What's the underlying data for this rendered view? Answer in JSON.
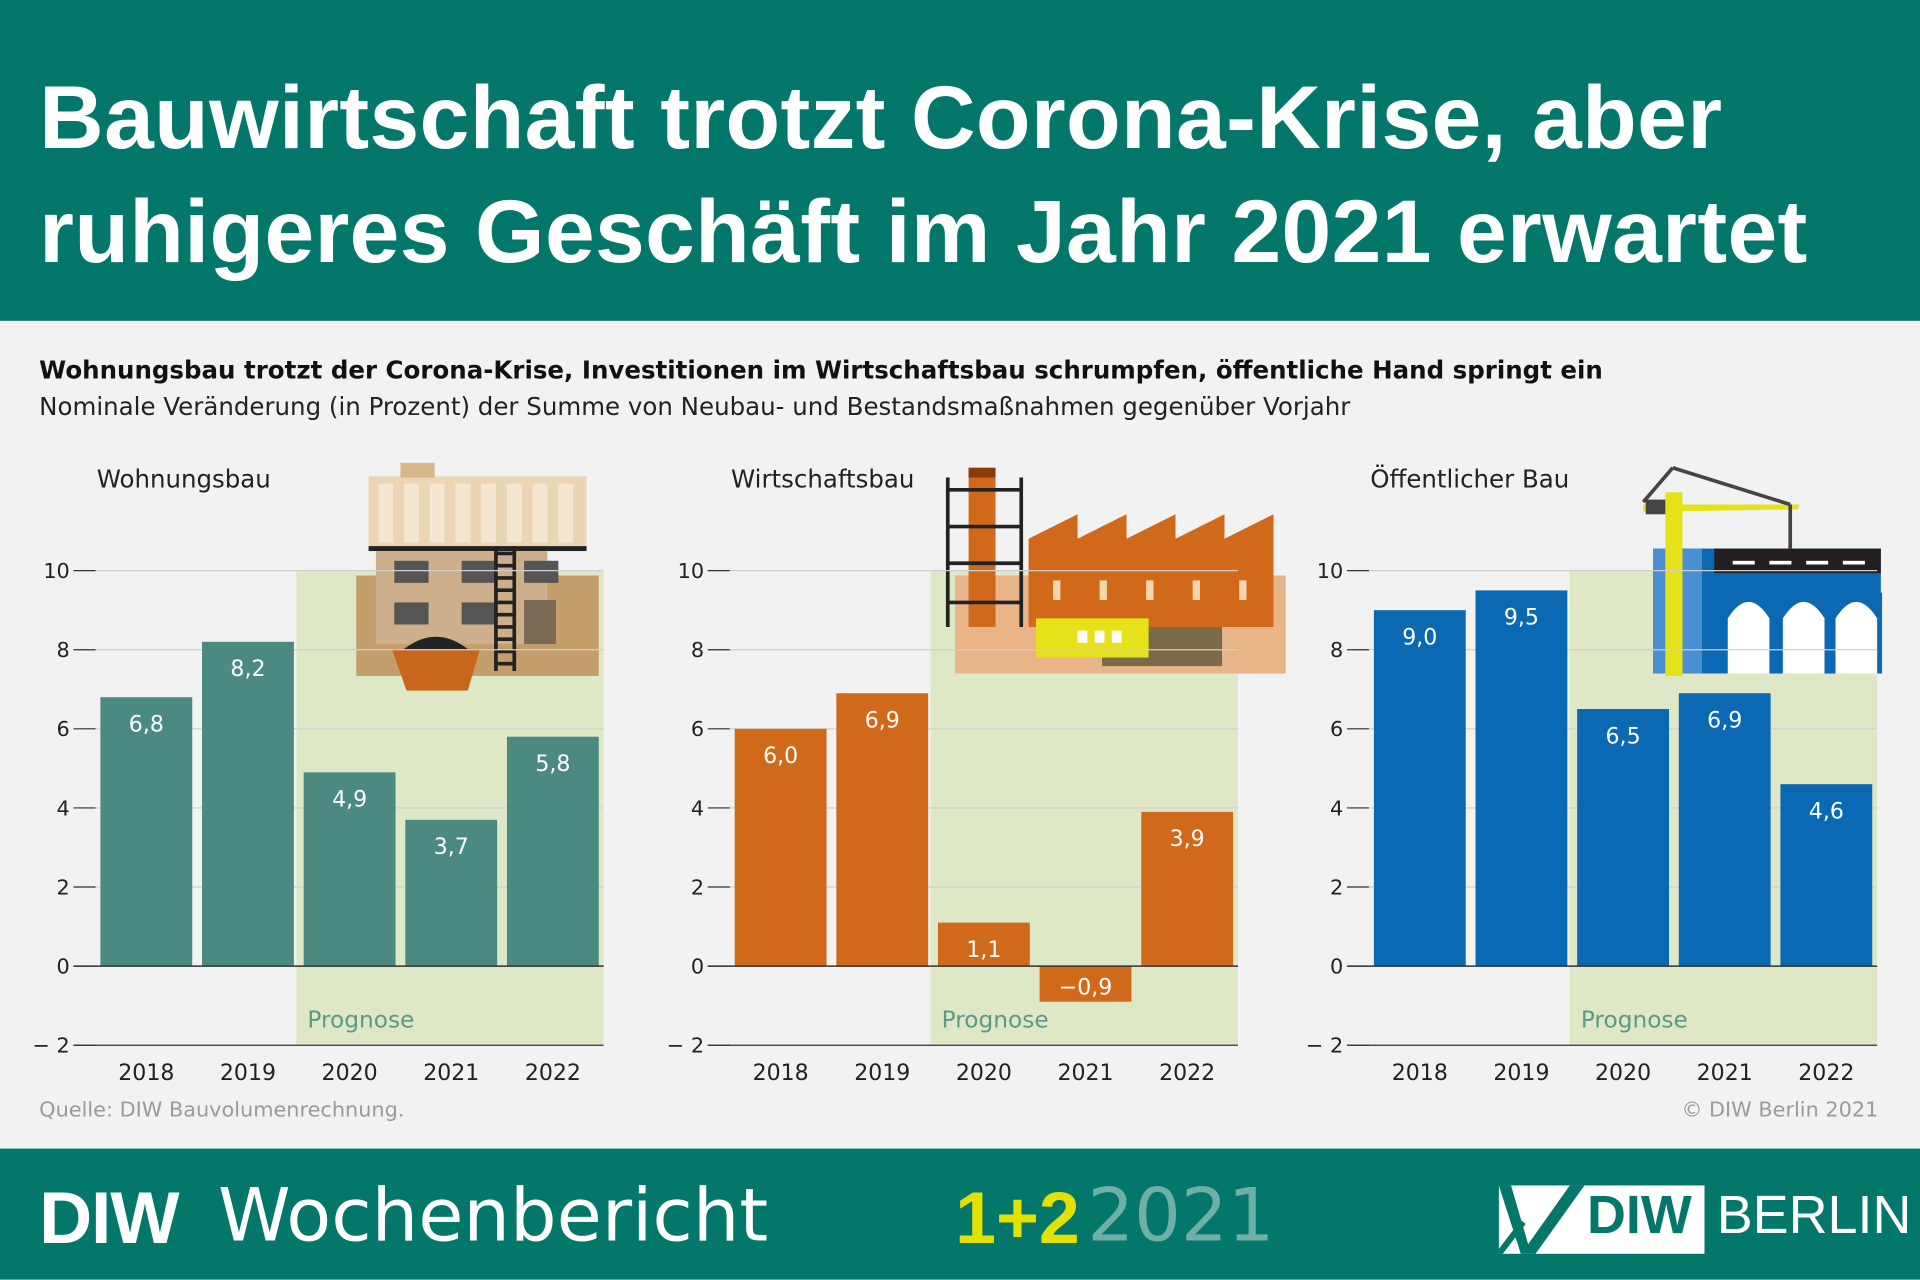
{
  "header": {
    "title_line1": "Bauwirtschaft trotzt Corona-Krise, aber",
    "title_line2": "ruhigeres Geschäft im Jahr 2021 erwartet"
  },
  "subtitle": "Wohnungsbau trotzt der Corona-Krise, Investitionen im Wirtschaftsbau schrumpfen, öffentliche Hand springt ein",
  "description": "Nominale Veränderung (in Prozent) der Summe von Neubau- und Bestandsmaßnahmen gegenüber Vorjahr",
  "source": "Quelle: DIW Bauvolumenrechnung.",
  "copyright": "© DIW Berlin 2021",
  "footer": {
    "publication_bold": "DIW",
    "publication": "Wochenbericht",
    "issue": "1+2",
    "year": "2021",
    "logo_diw": "DIW",
    "logo_berlin": "BERLIN"
  },
  "colors": {
    "header": "#03786a",
    "wohnungsbau": "#4a8a80",
    "wirtschaftsbau": "#d0691a",
    "oeffentlich": "#0a69b2",
    "prognose": "#dfe8c6"
  },
  "chart_data": [
    {
      "type": "bar",
      "title": "Wohnungsbau",
      "categories": [
        "2018",
        "2019",
        "2020",
        "2021",
        "2022"
      ],
      "values": [
        6.8,
        8.2,
        4.9,
        3.7,
        5.8
      ],
      "value_labels": [
        "6,8",
        "8,2",
        "4,9",
        "3,7",
        "5,8"
      ],
      "ylim": [
        -2,
        10
      ],
      "yticks": [
        10,
        8,
        6,
        4,
        2,
        0,
        -2
      ],
      "ytick_labels": [
        "10",
        "8",
        "6",
        "4",
        "2",
        "0",
        "− 2"
      ],
      "annotation": "Prognose",
      "prognose_from": "2020",
      "color": "#4a8a80",
      "grid": true,
      "illustration": "residential-building-icon"
    },
    {
      "type": "bar",
      "title": "Wirtschaftsbau",
      "categories": [
        "2018",
        "2019",
        "2020",
        "2021",
        "2022"
      ],
      "values": [
        6.0,
        6.9,
        1.1,
        -0.9,
        3.9
      ],
      "value_labels": [
        "6,0",
        "6,9",
        "1,1",
        "−0,9",
        "3,9"
      ],
      "ylim": [
        -2,
        10
      ],
      "yticks": [
        10,
        8,
        6,
        4,
        2,
        0,
        -2
      ],
      "ytick_labels": [
        "10",
        "8",
        "6",
        "4",
        "2",
        "0",
        "− 2"
      ],
      "annotation": "Prognose",
      "prognose_from": "2020",
      "color": "#d0691a",
      "grid": true,
      "illustration": "factory-icon"
    },
    {
      "type": "bar",
      "title": "Öffentlicher Bau",
      "categories": [
        "2018",
        "2019",
        "2020",
        "2021",
        "2022"
      ],
      "values": [
        9.0,
        9.5,
        6.5,
        6.9,
        4.6
      ],
      "value_labels": [
        "9,0",
        "9,5",
        "6,5",
        "6,9",
        "4,6"
      ],
      "ylim": [
        -2,
        10
      ],
      "yticks": [
        10,
        8,
        6,
        4,
        2,
        0,
        -2
      ],
      "ytick_labels": [
        "10",
        "8",
        "6",
        "4",
        "2",
        "0",
        "− 2"
      ],
      "annotation": "Prognose",
      "prognose_from": "2020",
      "color": "#0a69b2",
      "grid": true,
      "illustration": "bridge-crane-icon"
    }
  ]
}
